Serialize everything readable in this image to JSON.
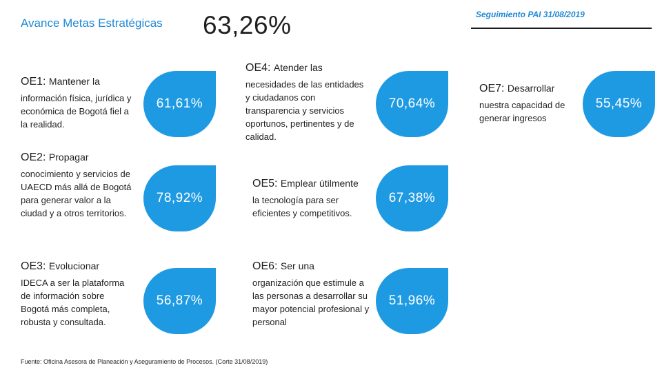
{
  "header": {
    "title": "Avance Metas Estratégicas",
    "total": "63,26%",
    "date_label": "Seguimiento PAI 31/08/2019"
  },
  "objectives": [
    {
      "code": "OE1:",
      "lead": "Mantener  la",
      "text": "información física, jurídica y económica de Bogotá fiel a la realidad.",
      "value": "61,61%"
    },
    {
      "code": "OE2:",
      "lead": "Propagar",
      "text": "conocimiento y servicios de UAECD más allá de Bogotá para generar valor a la ciudad y a otros territorios.",
      "value": "78,92%"
    },
    {
      "code": "OE3:",
      "lead": "Evolucionar",
      "text": "IDECA a ser la plataforma de información sobre Bogotá más completa, robusta y consultada.",
      "value": "56,87%"
    },
    {
      "code": "OE4:",
      "lead": "Atender las",
      "text": "necesidades de las entidades y ciudadanos con transparencia y servicios oportunos, pertinentes y de calidad.",
      "value": "70,64%"
    },
    {
      "code": "OE5:",
      "lead": "Emplear útilmente",
      "text": "la tecnología para ser eficientes y competitivos.",
      "value": "67,38%"
    },
    {
      "code": "OE6:",
      "lead": "Ser una",
      "text": "organización que estimule a las personas a desarrollar su mayor potencial profesional y personal",
      "value": "51,96%"
    },
    {
      "code": "OE7:",
      "lead": "Desarrollar",
      "text": "nuestra capacidad de generar ingresos",
      "value": "55,45%"
    }
  ],
  "footer": "Fuente: Oficina Asesora de Planeación y Aseguramiento de Procesos. (Corte 31/08/2019)",
  "colors": {
    "accent": "#1e9ae3",
    "title": "#1e88d6"
  }
}
